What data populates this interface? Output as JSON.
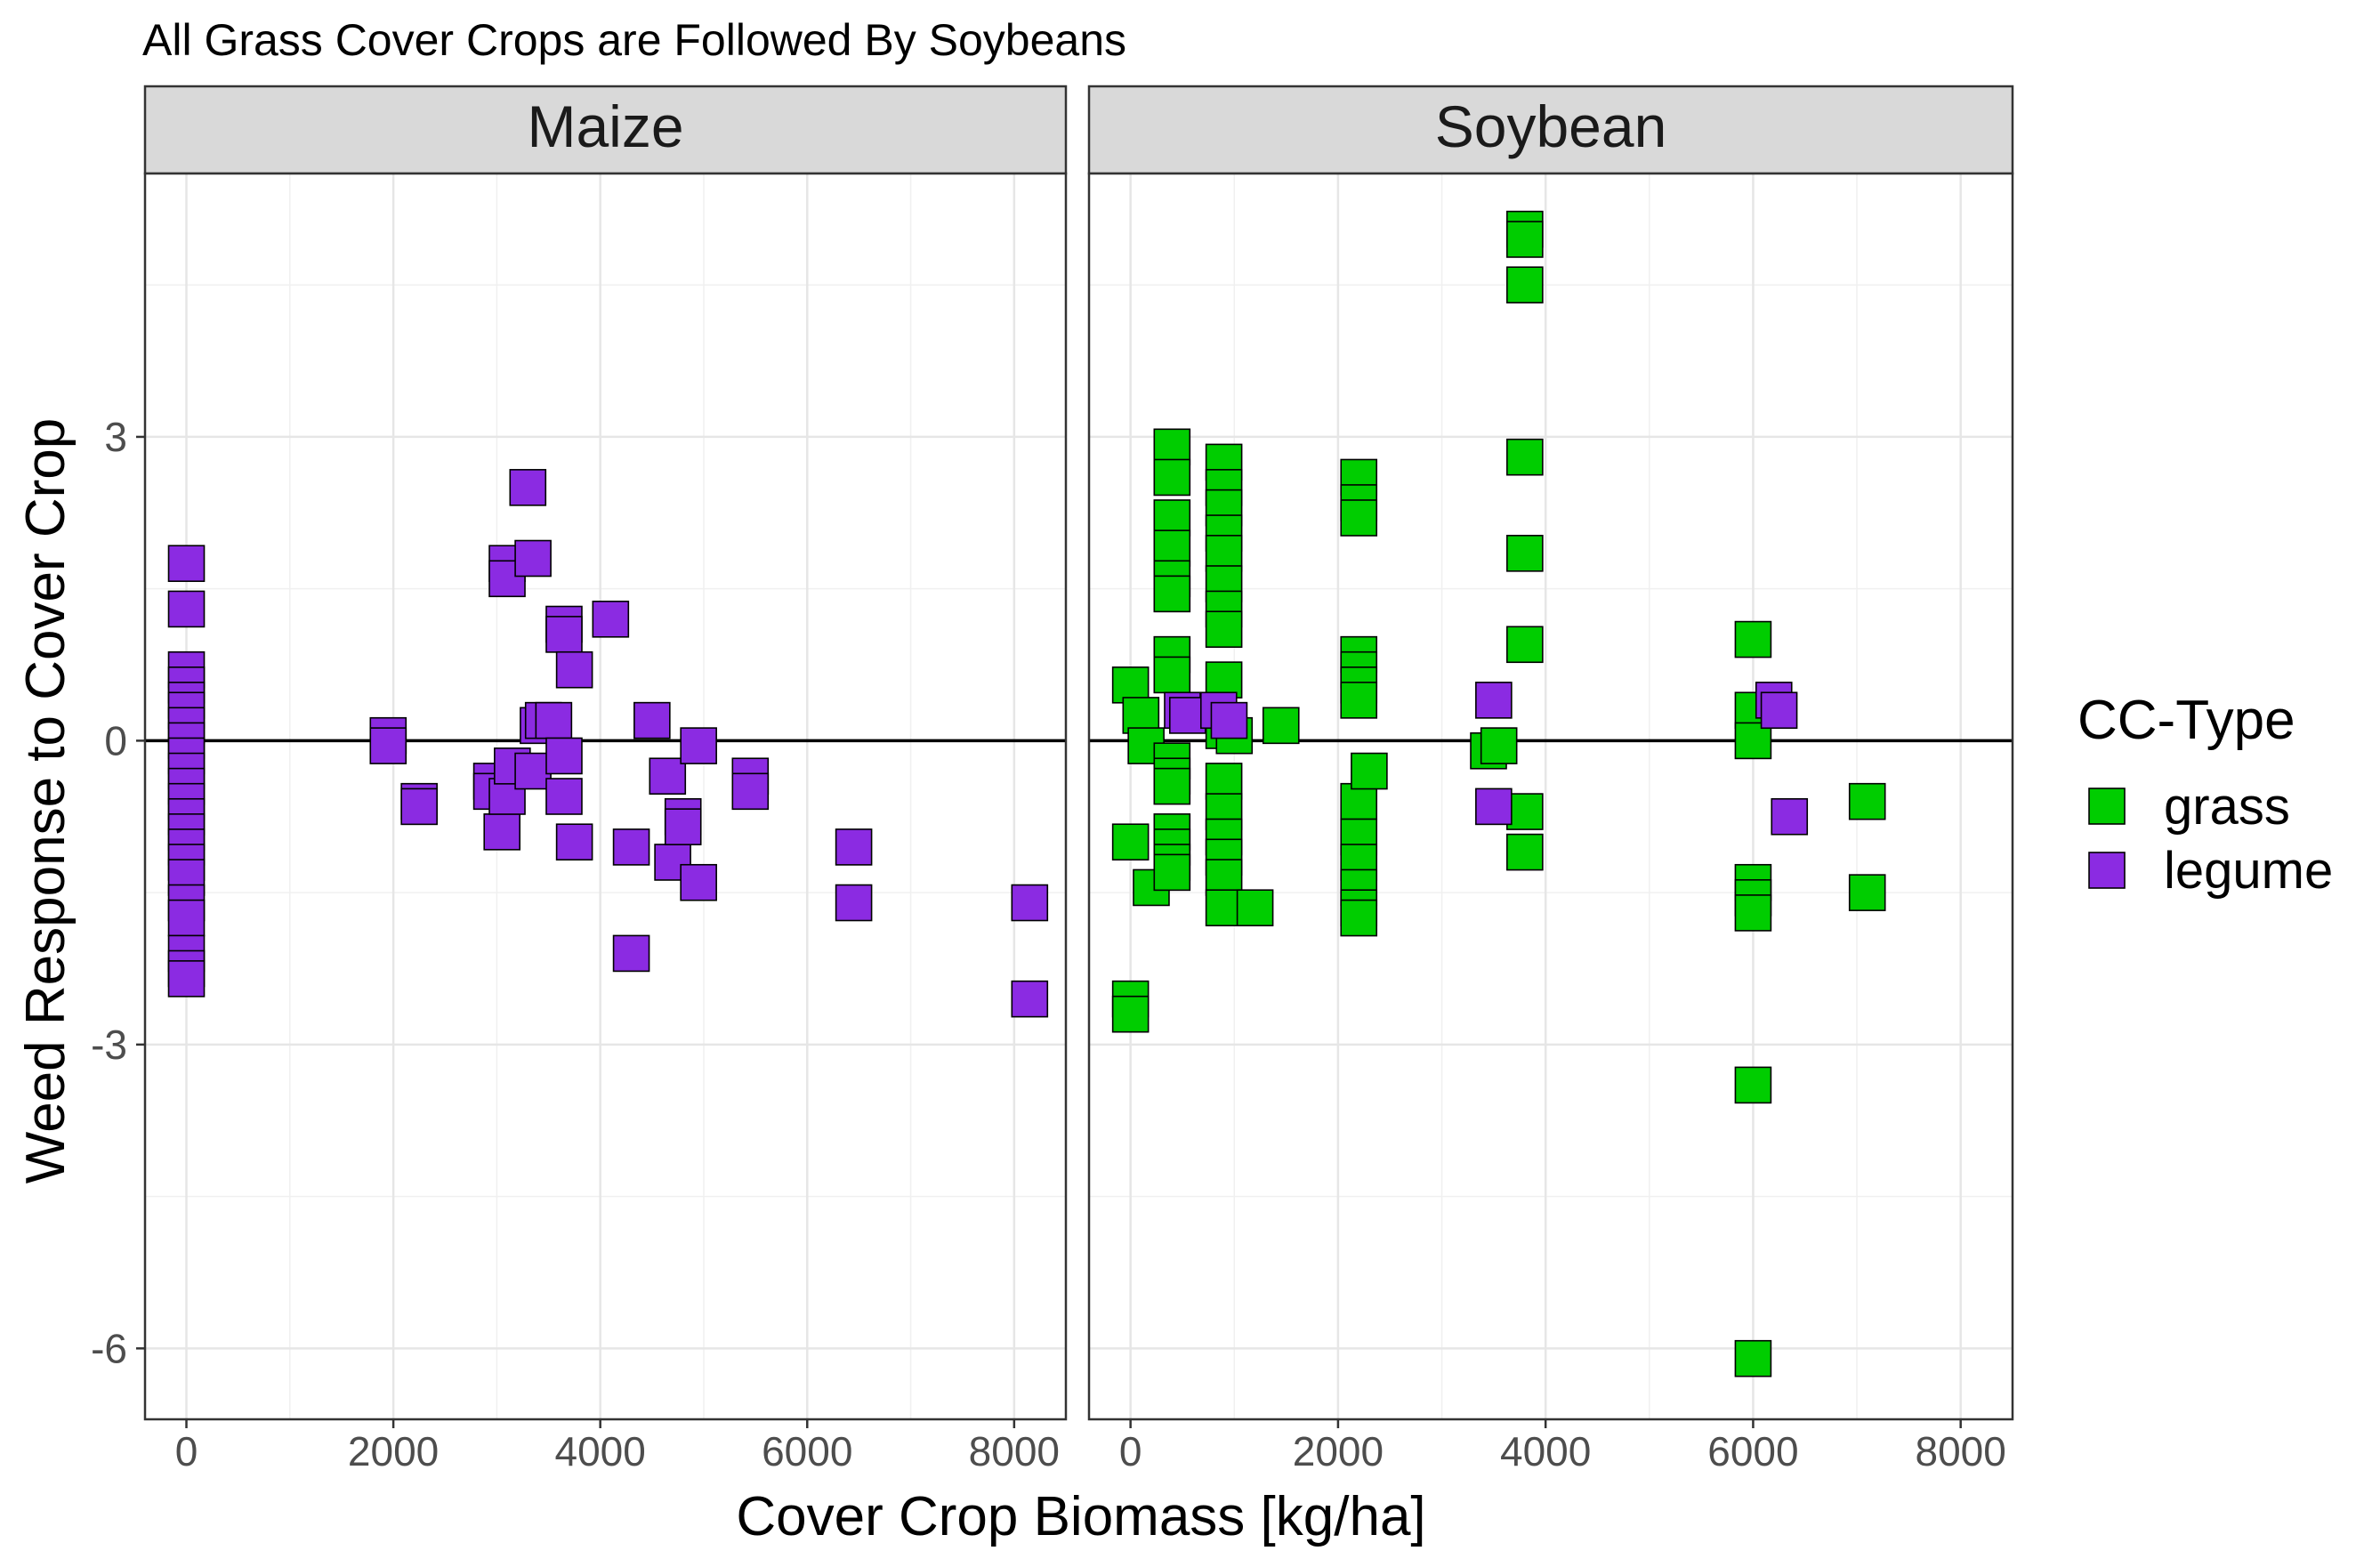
{
  "chart_data": {
    "type": "scatter",
    "title": "All Grass Cover Crops are Followed By Soybeans",
    "xlabel": "Cover Crop Biomass [kg/ha]",
    "ylabel": "Weed Response to Cover Crop",
    "xlim": [
      -400,
      8500
    ],
    "ylim": [
      -6.7,
      5.6
    ],
    "x_ticks": [
      0,
      2000,
      4000,
      6000,
      8000
    ],
    "x_tick_labels": [
      "0",
      "2000",
      "4000",
      "6000",
      "8000"
    ],
    "y_ticks": [
      -6,
      -3,
      0,
      3
    ],
    "y_tick_labels": [
      "-6",
      "-3",
      "0",
      "3"
    ],
    "x_minor_ticks": [
      1000,
      3000,
      5000,
      7000
    ],
    "y_minor_ticks": [
      -4.5,
      -1.5,
      1.5,
      4.5
    ],
    "reference_line_y": 0,
    "grid": true,
    "marker": "square",
    "legend": {
      "title": "CC-Type",
      "position": "right",
      "entries": [
        {
          "label": "grass",
          "color": "#00cd00"
        },
        {
          "label": "legume",
          "color": "#8b2be2"
        }
      ]
    },
    "panels": [
      {
        "name": "Maize",
        "series": [
          {
            "name": "legume",
            "color": "#8b2be2",
            "points": [
              [
                0,
                1.75
              ],
              [
                0,
                1.3
              ],
              [
                0,
                0.7
              ],
              [
                0,
                0.55
              ],
              [
                0,
                0.4
              ],
              [
                0,
                0.3
              ],
              [
                0,
                0.15
              ],
              [
                0,
                0.0
              ],
              [
                0,
                -0.15
              ],
              [
                0,
                -0.3
              ],
              [
                0,
                -0.45
              ],
              [
                0,
                -0.6
              ],
              [
                0,
                -0.75
              ],
              [
                0,
                -0.9
              ],
              [
                0,
                -1.05
              ],
              [
                0,
                -1.2
              ],
              [
                0,
                -1.35
              ],
              [
                0,
                -1.6
              ],
              [
                0,
                -1.75
              ],
              [
                0,
                -2.1
              ],
              [
                0,
                -2.25
              ],
              [
                0,
                -2.35
              ],
              [
                1950,
                0.05
              ],
              [
                1950,
                -0.05
              ],
              [
                2250,
                -0.6
              ],
              [
                2250,
                -0.65
              ],
              [
                2950,
                -0.4
              ],
              [
                2950,
                -0.5
              ],
              [
                3050,
                -0.9
              ],
              [
                3100,
                -0.55
              ],
              [
                3150,
                -0.25
              ],
              [
                3100,
                1.75
              ],
              [
                3100,
                1.6
              ],
              [
                3300,
                2.5
              ],
              [
                3350,
                1.8
              ],
              [
                3350,
                -0.3
              ],
              [
                3400,
                0.15
              ],
              [
                3450,
                0.2
              ],
              [
                3550,
                0.2
              ],
              [
                3650,
                -0.55
              ],
              [
                3650,
                -0.15
              ],
              [
                3650,
                1.15
              ],
              [
                3650,
                1.05
              ],
              [
                3750,
                0.7
              ],
              [
                3750,
                -1.0
              ],
              [
                4100,
                1.2
              ],
              [
                4300,
                -1.05
              ],
              [
                4300,
                -2.1
              ],
              [
                4500,
                0.2
              ],
              [
                4650,
                -0.35
              ],
              [
                4700,
                -1.2
              ],
              [
                4800,
                -0.75
              ],
              [
                4800,
                -0.85
              ],
              [
                4950,
                -1.4
              ],
              [
                4950,
                -0.05
              ],
              [
                5450,
                -0.35
              ],
              [
                5450,
                -0.5
              ],
              [
                6450,
                -1.05
              ],
              [
                6450,
                -1.6
              ],
              [
                8150,
                -1.6
              ],
              [
                8150,
                -2.55
              ]
            ]
          }
        ]
      },
      {
        "name": "Soybean",
        "series": [
          {
            "name": "grass",
            "color": "#00cd00",
            "points": [
              [
                0,
                0.55
              ],
              [
                0,
                -1.0
              ],
              [
                0,
                -2.55
              ],
              [
                0,
                -2.7
              ],
              [
                100,
                0.25
              ],
              [
                150,
                -0.05
              ],
              [
                200,
                -1.45
              ],
              [
                400,
                2.9
              ],
              [
                400,
                2.6
              ],
              [
                400,
                2.2
              ],
              [
                400,
                1.9
              ],
              [
                400,
                1.6
              ],
              [
                400,
                1.45
              ],
              [
                400,
                0.85
              ],
              [
                400,
                0.65
              ],
              [
                400,
                -0.2
              ],
              [
                400,
                -0.35
              ],
              [
                400,
                -0.45
              ],
              [
                400,
                -0.9
              ],
              [
                400,
                -1.05
              ],
              [
                400,
                -1.2
              ],
              [
                400,
                -1.3
              ],
              [
                900,
                2.75
              ],
              [
                900,
                2.5
              ],
              [
                900,
                2.3
              ],
              [
                900,
                2.05
              ],
              [
                900,
                1.85
              ],
              [
                900,
                1.55
              ],
              [
                900,
                1.3
              ],
              [
                900,
                1.1
              ],
              [
                900,
                0.6
              ],
              [
                900,
                0.1
              ],
              [
                900,
                -0.4
              ],
              [
                900,
                -0.7
              ],
              [
                900,
                -0.95
              ],
              [
                900,
                -1.15
              ],
              [
                900,
                -1.35
              ],
              [
                900,
                -1.65
              ],
              [
                1000,
                0.05
              ],
              [
                1450,
                0.15
              ],
              [
                1200,
                -1.65
              ],
              [
                2200,
                2.6
              ],
              [
                2200,
                2.35
              ],
              [
                2200,
                2.2
              ],
              [
                2200,
                0.85
              ],
              [
                2200,
                0.7
              ],
              [
                2200,
                0.55
              ],
              [
                2200,
                0.4
              ],
              [
                2200,
                -0.6
              ],
              [
                2200,
                -0.95
              ],
              [
                2200,
                -1.2
              ],
              [
                2200,
                -1.45
              ],
              [
                2200,
                -1.65
              ],
              [
                2200,
                -1.75
              ],
              [
                2300,
                -0.3
              ],
              [
                3800,
                5.05
              ],
              [
                3800,
                4.95
              ],
              [
                3800,
                4.5
              ],
              [
                3800,
                2.8
              ],
              [
                3800,
                1.85
              ],
              [
                3800,
                0.95
              ],
              [
                3800,
                -0.7
              ],
              [
                3800,
                -1.1
              ],
              [
                3450,
                -0.1
              ],
              [
                3550,
                -0.05
              ],
              [
                6000,
                1.0
              ],
              [
                6000,
                0.3
              ],
              [
                6000,
                0.0
              ],
              [
                6000,
                -1.4
              ],
              [
                6000,
                -1.55
              ],
              [
                6000,
                -1.7
              ],
              [
                6000,
                -3.4
              ],
              [
                6000,
                -6.1
              ],
              [
                7100,
                -0.6
              ],
              [
                7100,
                -1.5
              ]
            ]
          },
          {
            "name": "legume",
            "color": "#8b2be2",
            "points": [
              [
                500,
                0.3
              ],
              [
                550,
                0.25
              ],
              [
                850,
                0.3
              ],
              [
                950,
                0.2
              ],
              [
                3500,
                0.4
              ],
              [
                3500,
                -0.65
              ],
              [
                6200,
                0.4
              ],
              [
                6250,
                0.3
              ],
              [
                6350,
                -0.75
              ]
            ]
          }
        ]
      }
    ]
  }
}
